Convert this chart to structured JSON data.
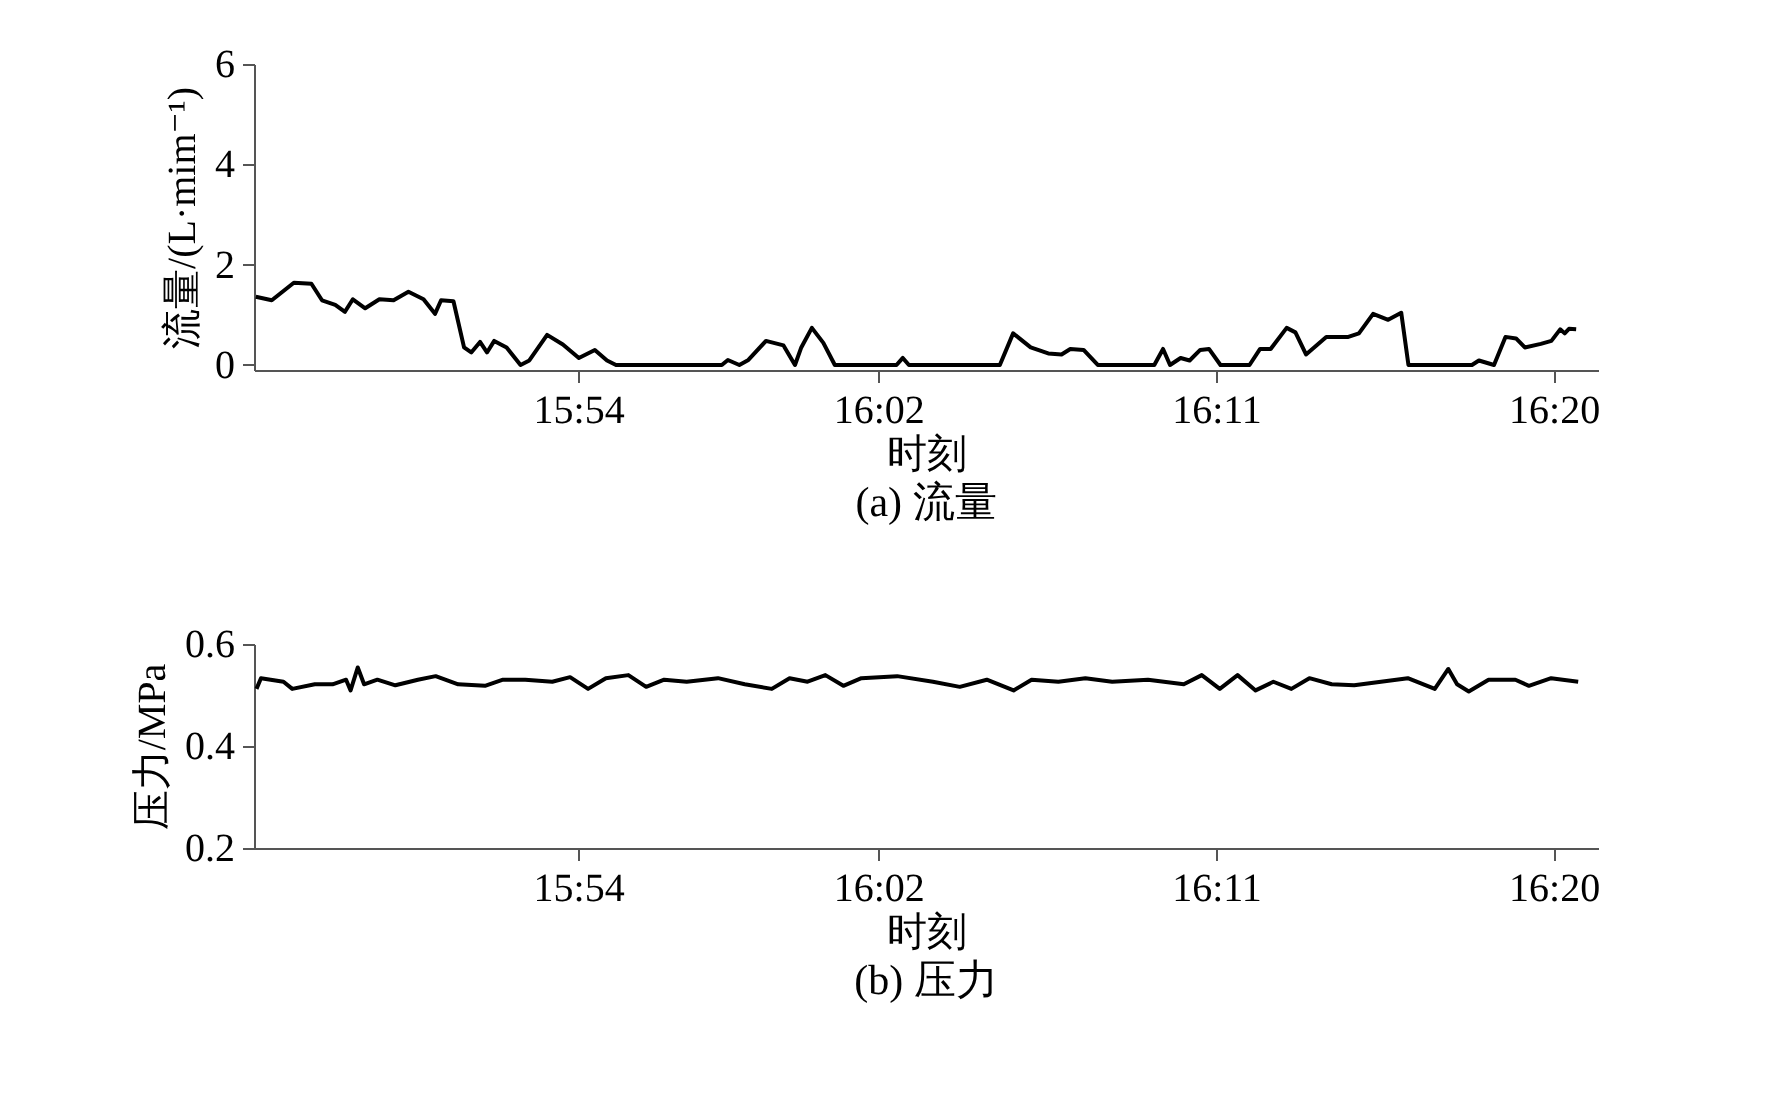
{
  "chart_data": [
    {
      "type": "line",
      "title": "(a) 流量",
      "xlabel": "时刻",
      "ylabel": "流量/(L·mim⁻¹)",
      "xlim": [
        15.756,
        16.353
      ],
      "ylim": [
        -0.1,
        6
      ],
      "yticks": [
        0,
        2,
        4,
        6
      ],
      "xticks": [
        {
          "value": 15.9,
          "label": "15:54"
        },
        {
          "value": 16.0333,
          "label": "16:02"
        },
        {
          "value": 16.1833,
          "label": "16:11"
        },
        {
          "value": 16.3333,
          "label": "16:20"
        }
      ],
      "x": [
        15.7568,
        15.7639,
        15.7737,
        15.7815,
        15.7862,
        15.7921,
        15.7964,
        15.7999,
        15.8054,
        15.8117,
        15.818,
        15.8246,
        15.8313,
        15.8364,
        15.8391,
        15.8446,
        15.8493,
        15.8525,
        15.8564,
        15.8595,
        15.8627,
        15.8682,
        15.8744,
        15.8783,
        15.8862,
        15.8932,
        15.9003,
        15.9074,
        15.9128,
        15.9168,
        15.9638,
        15.9665,
        15.9716,
        15.9756,
        15.9834,
        15.9912,
        15.9963,
        15.9991,
        16.0038,
        16.0089,
        16.014,
        16.0414,
        16.0442,
        16.0469,
        16.0873,
        16.0932,
        16.101,
        16.1088,
        16.1147,
        16.1186,
        16.1245,
        16.1308,
        16.1559,
        16.1598,
        16.1629,
        16.1676,
        16.1716,
        16.1763,
        16.1802,
        16.1853,
        16.1982,
        16.2029,
        16.2076,
        16.2147,
        16.2186,
        16.2233,
        16.2323,
        16.2421,
        16.2468,
        16.2531,
        16.2598,
        16.2656,
        16.2688,
        16.297,
        16.3001,
        16.3068,
        16.3119,
        16.3166,
        16.3205,
        16.3276,
        16.3323,
        16.3362,
        16.3382,
        16.3401,
        16.3433
      ],
      "series": [
        {
          "color": "#000000",
          "values": [
            1.36,
            1.29,
            1.64,
            1.62,
            1.29,
            1.2,
            1.06,
            1.31,
            1.13,
            1.31,
            1.29,
            1.46,
            1.31,
            1.02,
            1.29,
            1.27,
            0.35,
            0.25,
            0.46,
            0.25,
            0.48,
            0.35,
            0,
            0.09,
            0.6,
            0.41,
            0.14,
            0.3,
            0.09,
            0,
            0,
            0.1,
            0,
            0.1,
            0.48,
            0.39,
            0,
            0.35,
            0.74,
            0.44,
            0,
            0,
            0.14,
            0,
            0,
            0.63,
            0.35,
            0.23,
            0.21,
            0.32,
            0.3,
            0,
            0,
            0.32,
            0,
            0.14,
            0.09,
            0.3,
            0.32,
            0,
            0,
            0.32,
            0.32,
            0.74,
            0.65,
            0.21,
            0.56,
            0.56,
            0.63,
            1.02,
            0.9,
            1.04,
            0,
            0,
            0.09,
            0,
            0.56,
            0.53,
            0.35,
            0.42,
            0.48,
            0.71,
            0.63,
            0.72,
            0.71
          ]
        }
      ]
    },
    {
      "type": "line",
      "title": "(b) 压力",
      "xlabel": "时刻",
      "ylabel": "压力/MPa",
      "xlim": [
        15.756,
        16.353
      ],
      "ylim": [
        0.2,
        0.6
      ],
      "yticks": [
        0.2,
        0.4,
        0.6
      ],
      "xticks": [
        {
          "value": 15.9,
          "label": "15:54"
        },
        {
          "value": 16.0333,
          "label": "16:02"
        },
        {
          "value": 16.1833,
          "label": "16:11"
        },
        {
          "value": 16.3333,
          "label": "16:20"
        }
      ],
      "x": [
        15.7571,
        15.7591,
        15.7691,
        15.773,
        15.783,
        15.7909,
        15.7969,
        15.7989,
        15.8021,
        15.8049,
        15.8108,
        15.8188,
        15.8288,
        15.8367,
        15.8467,
        15.8586,
        15.8666,
        15.8765,
        15.8885,
        15.8964,
        15.9044,
        15.9123,
        15.9223,
        15.9302,
        15.9382,
        15.9482,
        15.9621,
        15.974,
        15.986,
        15.9939,
        16.0019,
        16.0098,
        16.0178,
        16.0258,
        16.0417,
        16.0576,
        16.0695,
        16.0815,
        16.0934,
        16.1014,
        16.1133,
        16.1253,
        16.1372,
        16.1531,
        16.169,
        16.177,
        16.185,
        16.1929,
        16.2009,
        16.2088,
        16.2168,
        16.2248,
        16.2347,
        16.2447,
        16.2566,
        16.2685,
        16.2805,
        16.2865,
        16.2904,
        16.2956,
        16.3044,
        16.3163,
        16.3223,
        16.3322,
        16.3442
      ],
      "series": [
        {
          "color": "#000000",
          "values": [
            0.512,
            0.533,
            0.526,
            0.512,
            0.521,
            0.521,
            0.53,
            0.509,
            0.554,
            0.521,
            0.53,
            0.519,
            0.53,
            0.537,
            0.521,
            0.518,
            0.53,
            0.53,
            0.526,
            0.535,
            0.512,
            0.533,
            0.539,
            0.516,
            0.53,
            0.526,
            0.533,
            0.521,
            0.512,
            0.533,
            0.526,
            0.539,
            0.518,
            0.533,
            0.537,
            0.526,
            0.516,
            0.53,
            0.509,
            0.53,
            0.526,
            0.533,
            0.526,
            0.53,
            0.521,
            0.539,
            0.512,
            0.539,
            0.509,
            0.526,
            0.512,
            0.533,
            0.521,
            0.519,
            0.526,
            0.533,
            0.512,
            0.551,
            0.521,
            0.507,
            0.53,
            0.53,
            0.518,
            0.533,
            0.526
          ]
        }
      ]
    }
  ]
}
